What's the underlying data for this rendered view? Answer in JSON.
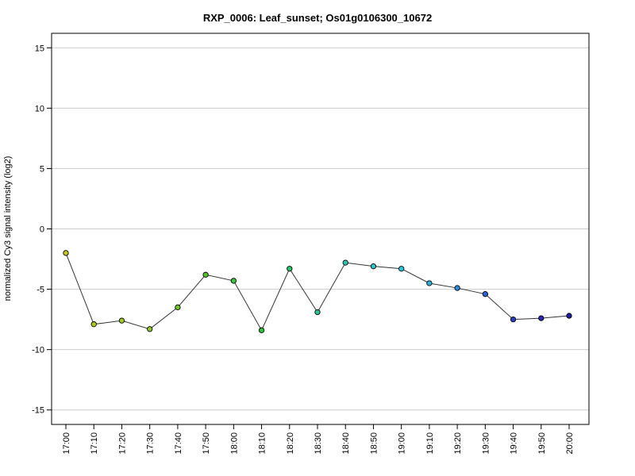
{
  "chart_data": {
    "type": "line",
    "title": "RXP_0006: Leaf_sunset; Os01g0106300_10672",
    "xlabel": "",
    "ylabel": "normalized Cy3 signal intensity (log2)",
    "ylim": [
      -16.2,
      16.2
    ],
    "yticks": [
      -15,
      -10,
      -5,
      0,
      5,
      10,
      15
    ],
    "grid": true,
    "categories": [
      "17:00",
      "17:10",
      "17:20",
      "17:30",
      "17:40",
      "17:50",
      "18:00",
      "18:10",
      "18:20",
      "18:30",
      "18:40",
      "18:50",
      "19:00",
      "19:10",
      "19:20",
      "19:30",
      "19:40",
      "19:50",
      "20:00"
    ],
    "series": [
      {
        "values": [
          -2.0,
          -7.9,
          -7.6,
          -8.3,
          -6.5,
          -3.8,
          -4.3,
          -8.4,
          -3.3,
          -6.9,
          -2.8,
          -3.1,
          -3.3,
          -4.5,
          -4.9,
          -5.4,
          -7.5,
          -7.4,
          -7.2
        ],
        "point_colors": [
          "#c8c814",
          "#b4c81e",
          "#a0c81e",
          "#8cc828",
          "#6ec828",
          "#50c828",
          "#3cc832",
          "#28c83c",
          "#28c864",
          "#28c88c",
          "#28c8b4",
          "#28c8c8",
          "#28c8dc",
          "#28b4dc",
          "#288cdc",
          "#2864dc",
          "#283cc8",
          "#2828b4",
          "#1e1ea0"
        ],
        "line_color": "#333333"
      }
    ]
  }
}
